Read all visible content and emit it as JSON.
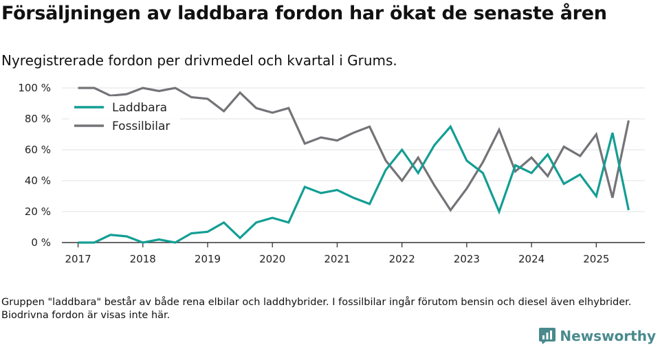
{
  "title": "Försäljningen av laddbara fordon har ökat de senaste åren",
  "subtitle": "Nyregistrerade fordon per drivmedel och kvartal i Grums.",
  "caption": "Gruppen \"laddbara\" består av både rena elbilar och laddhybrider. I fossilbilar ingår förutom bensin och diesel även elhybrider. Biodrivna fordon är visas inte här.",
  "brand": {
    "name": "Newsworthy",
    "color": "#4a8a8e"
  },
  "chart_data": {
    "type": "line",
    "title": "Nyregistrerade fordon per drivmedel och kvartal i Grums.",
    "xlabel": "",
    "ylabel": "",
    "ylim": [
      0,
      100
    ],
    "xlim": [
      2016.75,
      2025.75
    ],
    "y_ticks": [
      0,
      20,
      40,
      60,
      80,
      100
    ],
    "y_tick_labels": [
      "0 %",
      "20 %",
      "40 %",
      "60 %",
      "80 %",
      "100 %"
    ],
    "x_ticks": [
      2017,
      2018,
      2019,
      2020,
      2021,
      2022,
      2023,
      2024,
      2025
    ],
    "x_tick_labels": [
      "2017",
      "2018",
      "2019",
      "2020",
      "2021",
      "2022",
      "2023",
      "2024",
      "2025"
    ],
    "grid": true,
    "legend_position": "top-left",
    "x": [
      2017.0,
      2017.25,
      2017.5,
      2017.75,
      2018.0,
      2018.25,
      2018.5,
      2018.75,
      2019.0,
      2019.25,
      2019.5,
      2019.75,
      2020.0,
      2020.25,
      2020.5,
      2020.75,
      2021.0,
      2021.25,
      2021.5,
      2021.75,
      2022.0,
      2022.25,
      2022.5,
      2022.75,
      2023.0,
      2023.25,
      2023.5,
      2023.75,
      2024.0,
      2024.25,
      2024.5,
      2024.75,
      2025.0,
      2025.25,
      2025.5
    ],
    "series": [
      {
        "name": "Laddbara",
        "color": "#139e94",
        "values": [
          0,
          0,
          5,
          4,
          0,
          2,
          0,
          6,
          7,
          13,
          3,
          13,
          16,
          13,
          36,
          32,
          34,
          29,
          25,
          47,
          60,
          45,
          63,
          75,
          53,
          45,
          20,
          50,
          45,
          57,
          38,
          44,
          30,
          71,
          21
        ]
      },
      {
        "name": "Fossilbilar",
        "color": "#737378",
        "values": [
          100,
          100,
          95,
          96,
          100,
          98,
          100,
          94,
          93,
          85,
          97,
          87,
          84,
          87,
          64,
          68,
          66,
          71,
          75,
          53,
          40,
          55,
          37,
          21,
          35,
          52,
          73,
          46,
          55,
          43,
          62,
          56,
          70,
          29,
          79
        ]
      }
    ]
  }
}
